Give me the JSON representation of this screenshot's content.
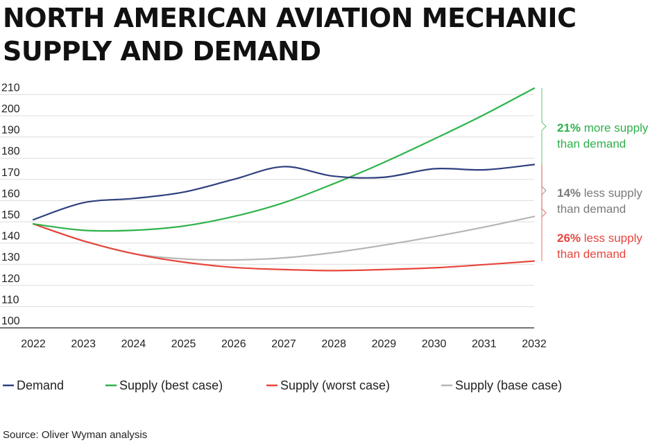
{
  "title": "NORTH AMERICAN AVIATION MECHANIC SUPPLY AND DEMAND",
  "source": "Source: Oliver Wyman analysis",
  "chart_data": {
    "type": "line",
    "x": [
      2022,
      2023,
      2024,
      2025,
      2026,
      2027,
      2028,
      2029,
      2030,
      2031,
      2032
    ],
    "ylim": [
      100,
      213
    ],
    "yticks": [
      100,
      110,
      120,
      130,
      140,
      150,
      160,
      170,
      180,
      190,
      200,
      210
    ],
    "grid": true,
    "legend_position": "bottom",
    "series": [
      {
        "name": "Demand",
        "color": "#2e3f7f",
        "values": [
          151,
          159,
          161,
          164,
          170,
          176,
          171.5,
          171,
          175,
          174.5,
          177
        ]
      },
      {
        "name": "Supply (best case)",
        "color": "#2eb24a",
        "values": [
          149,
          146,
          146,
          148,
          152.5,
          159,
          168,
          178,
          189,
          200.5,
          213
        ]
      },
      {
        "name": "Supply (worst case)",
        "color": "#e8453c",
        "values": [
          149,
          141,
          135,
          131,
          128.5,
          127.5,
          127,
          127.5,
          128.3,
          129.8,
          131.5
        ]
      },
      {
        "name": "Supply (base case)",
        "color": "#b5b5b5",
        "values": [
          149,
          141,
          135,
          132.5,
          132,
          133,
          135.5,
          139,
          143,
          147.5,
          152.5
        ]
      }
    ],
    "annotations": [
      {
        "pct": "21%",
        "text1": " more supply",
        "text2": "than demand",
        "color": "#2eb24a",
        "from": 177,
        "to": 213
      },
      {
        "pct": "14%",
        "text1": " less supply",
        "text2": "than demand",
        "color": "#7a7a7a",
        "from": 152.5,
        "to": 177
      },
      {
        "pct": "26%",
        "text1": " less supply",
        "text2": "than demand",
        "color": "#e8453c",
        "from": 131.5,
        "to": 177
      }
    ]
  }
}
